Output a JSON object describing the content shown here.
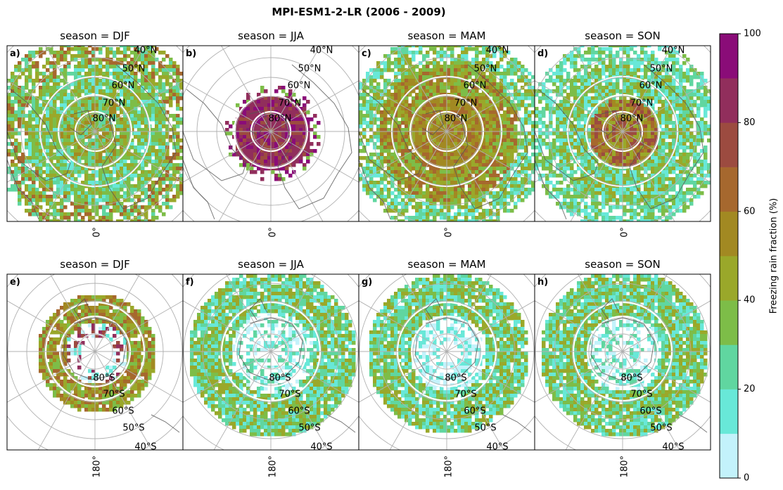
{
  "chart_data": {
    "type": "heatmap",
    "title": "MPI-ESM1-2-LR (2006 - 2009)",
    "projection": "polar stereographic",
    "colorbar": {
      "label": "Freezing rain fraction (%)",
      "range": [
        0,
        100
      ],
      "ticks": [
        "0",
        "20",
        "40",
        "60",
        "80",
        "100"
      ],
      "bins": [
        0,
        10,
        20,
        30,
        40,
        50,
        60,
        70,
        80,
        90,
        100
      ],
      "colors": [
        "#c3f2fb",
        "#68e8d8",
        "#60d6a0",
        "#7dbd48",
        "#9aa82a",
        "#a28922",
        "#a6682e",
        "#9c4b40",
        "#912e5c",
        "#8a0c78"
      ]
    },
    "panels": [
      {
        "label": "a)",
        "title": "season = DJF",
        "hemisphere": "north",
        "lat_labels": [
          "40°N",
          "50°N",
          "60°N",
          "70°N",
          "80°N"
        ],
        "lon_label": "0°",
        "dominant_range": "30-60%",
        "pattern": "mixed green/olive with cyan patches, brown-red over Siberia"
      },
      {
        "label": "b)",
        "title": "season = JJA",
        "hemisphere": "north",
        "lat_labels": [
          "40°N",
          "50°N",
          "60°N",
          "70°N",
          "80°N"
        ],
        "lon_label": "0°",
        "dominant_range": "80-100%",
        "pattern": "small purple/magenta cap over Arctic Ocean"
      },
      {
        "label": "c)",
        "title": "season = MAM",
        "hemisphere": "north",
        "lat_labels": [
          "40°N",
          "50°N",
          "60°N",
          "70°N",
          "80°N"
        ],
        "lon_label": "0°",
        "dominant_range": "40-70%",
        "pattern": "olive-brown over Arctic, green to the south"
      },
      {
        "label": "d)",
        "title": "season = SON",
        "hemisphere": "north",
        "lat_labels": [
          "40°N",
          "50°N",
          "60°N",
          "70°N",
          "80°N"
        ],
        "lon_label": "0°",
        "dominant_range": "20-60%",
        "pattern": "olive-brown cap, cyan/green southern ring"
      },
      {
        "label": "e)",
        "title": "season = DJF",
        "hemisphere": "south",
        "lat_labels": [
          "80°S",
          "70°S",
          "60°S",
          "50°S",
          "40°S"
        ],
        "lon_label": "180°",
        "dominant_range": "40-70%",
        "pattern": "olive-brown ring around Antarctica, pale interior"
      },
      {
        "label": "f)",
        "title": "season = JJA",
        "hemisphere": "south",
        "lat_labels": [
          "80°S",
          "70°S",
          "60°S",
          "50°S",
          "40°S"
        ],
        "lon_label": "180°",
        "dominant_range": "10-40%",
        "pattern": "broad cyan/green ring over Southern Ocean"
      },
      {
        "label": "g)",
        "title": "season = MAM",
        "hemisphere": "south",
        "lat_labels": [
          "80°S",
          "70°S",
          "60°S",
          "50°S",
          "40°S"
        ],
        "lon_label": "180°",
        "dominant_range": "20-50%",
        "pattern": "green/olive ring with cyan patches"
      },
      {
        "label": "h)",
        "title": "season = SON",
        "hemisphere": "south",
        "lat_labels": [
          "80°S",
          "70°S",
          "60°S",
          "50°S",
          "40°S"
        ],
        "lon_label": "180°",
        "dominant_range": "20-50%",
        "pattern": "green ring with olive outer band"
      }
    ]
  }
}
